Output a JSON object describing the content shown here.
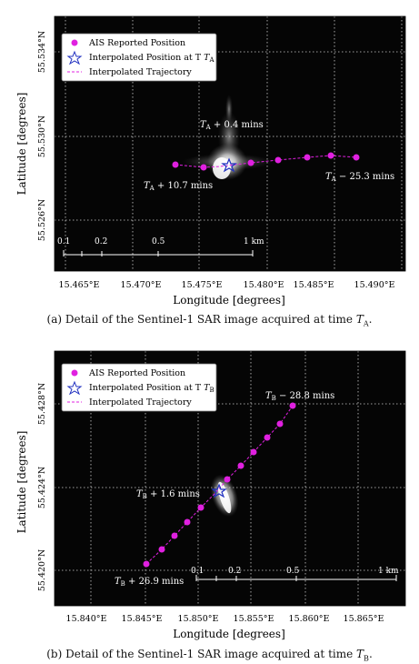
{
  "figures": [
    {
      "id": "a",
      "caption": "(a) Detail of the Sentinel-1 SAR image acquired at time T_A.",
      "caption_main": "(a) Detail of the Sentinel-1 SAR image acquired at time ",
      "caption_T": "T",
      "caption_sub": "A",
      "caption_end": ".",
      "xlabel": "Longitude [degrees]",
      "ylabel": "Latitude [degrees]",
      "x_ticks": [
        "15.465°E",
        "15.470°E",
        "15.475°E",
        "15.480°E",
        "15.485°E",
        "15.490°E"
      ],
      "y_ticks": [
        "55.534°N",
        "55.530°N",
        "55.526°N"
      ],
      "legend": [
        "AIS Reported Position",
        "Interpolated Position at T",
        "Interpolated Trajectory"
      ],
      "legend_sub": "A",
      "annotations": [
        {
          "T": "T",
          "sub": "A",
          "text": " + 0.4 mins"
        },
        {
          "T": "T",
          "sub": "A",
          "text": " + 10.7 mins"
        },
        {
          "T": "T",
          "sub": "A",
          "text": " − 25.3 mins"
        }
      ],
      "scalebar": [
        "0.1",
        "0.2",
        "0.5",
        "1 km"
      ],
      "colors": {
        "ais": "#e020e0",
        "trajectory": "#e020e0",
        "star": "#2030c0",
        "background": "#050505"
      }
    },
    {
      "id": "b",
      "caption": "(b) Detail of the Sentinel-1 SAR image acquired at time T_B.",
      "caption_main": "(b) Detail of the Sentinel-1 SAR image acquired at time ",
      "caption_T": "T",
      "caption_sub": "B",
      "caption_end": ".",
      "xlabel": "Longitude [degrees]",
      "ylabel": "Latitude [degrees]",
      "x_ticks": [
        "15.840°E",
        "15.845°E",
        "15.850°E",
        "15.855°E",
        "15.860°E",
        "15.865°E"
      ],
      "y_ticks": [
        "55.428°N",
        "55.424°N",
        "55.420°N"
      ],
      "legend": [
        "AIS Reported Position",
        "Interpolated Position at T",
        "Interpolated Trajectory"
      ],
      "legend_sub": "B",
      "annotations": [
        {
          "T": "T",
          "sub": "B",
          "text": " − 28.8 mins"
        },
        {
          "T": "T",
          "sub": "B",
          "text": " + 1.6 mins"
        },
        {
          "T": "T",
          "sub": "B",
          "text": " + 26.9 mins"
        }
      ],
      "scalebar": [
        "0.1",
        "0.2",
        "0.5",
        "1 km"
      ],
      "colors": {
        "ais": "#e020e0",
        "trajectory": "#e020e0",
        "star": "#2030c0",
        "background": "#050505"
      }
    }
  ]
}
